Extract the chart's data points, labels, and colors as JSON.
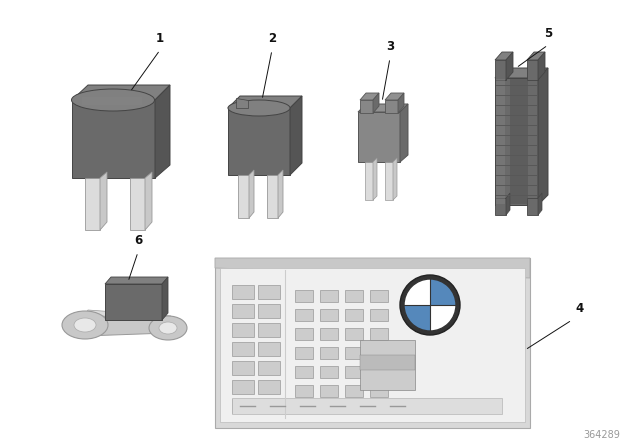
{
  "bg_color": "#ffffff",
  "dark": "#6a6a6a",
  "mid": "#808080",
  "light": "#aaaaaa",
  "silver": "#c8c8c8",
  "silver_light": "#dcdcdc",
  "footnote": "364289",
  "footnote_color": "#999999",
  "label_fs": 8.5
}
